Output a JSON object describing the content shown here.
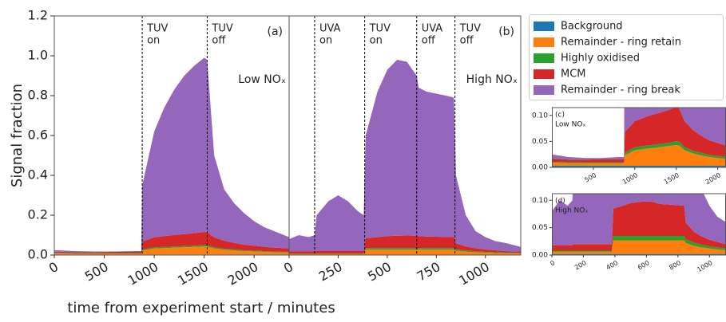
{
  "chart_data": {
    "type": "area",
    "stacked": true,
    "y_label": "Signal fraction",
    "x_label": "time from experiment start / minutes",
    "ylim": [
      0,
      1.2
    ],
    "yticks": [
      {
        "value": 0,
        "label": "0.0"
      },
      0.2,
      0.4,
      0.6,
      0.8,
      {
        "value": 1,
        "label": "1.0"
      },
      1.2
    ],
    "legend": "upper right",
    "series": [
      {
        "name": "Background",
        "color": "#1f77b4"
      },
      {
        "name": "Remainder - ring retain",
        "color": "#ff7f0e"
      },
      {
        "name": "Highly oxidised",
        "color": "#2ca02c"
      },
      {
        "name": "MCM",
        "color": "#d62728"
      },
      {
        "name": "Remainder - ring break",
        "color": "#9467bd"
      }
    ],
    "panels": [
      {
        "label": "(a)",
        "annotation": "Low NOₓ",
        "xlim": [
          0,
          2350
        ],
        "xticks": [
          0,
          500,
          1000,
          1500,
          2000
        ],
        "events": [
          {
            "x": 880,
            "label": [
              "TUV",
              "on"
            ]
          },
          {
            "x": 1530,
            "label": [
              "TUV",
              "off"
            ]
          }
        ],
        "x": [
          0,
          200,
          400,
          600,
          800,
          870,
          880,
          1000,
          1100,
          1200,
          1300,
          1400,
          1500,
          1530,
          1600,
          1700,
          1800,
          1900,
          2000,
          2100,
          2200,
          2350
        ],
        "stack": [
          [
            0.003,
            0.003,
            0.003,
            0.003,
            0.003,
            0.003,
            0.003,
            0.003,
            0.003,
            0.003,
            0.003,
            0.003,
            0.003,
            0.003,
            0.003,
            0.003,
            0.003,
            0.003,
            0.003,
            0.003,
            0.003,
            0.003
          ],
          [
            0.006,
            0.005,
            0.005,
            0.005,
            0.005,
            0.005,
            0.02,
            0.03,
            0.032,
            0.034,
            0.036,
            0.038,
            0.04,
            0.04,
            0.03,
            0.024,
            0.02,
            0.017,
            0.015,
            0.013,
            0.011,
            0.01
          ],
          [
            0.002,
            0.002,
            0.002,
            0.002,
            0.002,
            0.002,
            0.005,
            0.006,
            0.006,
            0.006,
            0.006,
            0.006,
            0.007,
            0.007,
            0.006,
            0.005,
            0.005,
            0.004,
            0.004,
            0.004,
            0.003,
            0.003
          ],
          [
            0.006,
            0.005,
            0.005,
            0.006,
            0.006,
            0.006,
            0.04,
            0.05,
            0.054,
            0.058,
            0.06,
            0.063,
            0.066,
            0.065,
            0.05,
            0.04,
            0.033,
            0.028,
            0.025,
            0.022,
            0.02,
            0.018
          ],
          [
            0.008,
            0.005,
            0.003,
            0.002,
            0.004,
            0.004,
            0.282,
            0.531,
            0.645,
            0.729,
            0.795,
            0.84,
            0.874,
            0.865,
            0.411,
            0.258,
            0.199,
            0.158,
            0.123,
            0.098,
            0.083,
            0.056
          ]
        ],
        "inset": {
          "label": "(c)",
          "annotation": "Low NOₓ",
          "xlim": [
            0,
            2100
          ],
          "xticks": [
            500,
            1000,
            1500,
            2000
          ],
          "ylim": [
            0,
            0.115
          ],
          "yticks": [
            {
              "value": 0,
              "label": "0.00"
            },
            {
              "value": 0.05,
              "label": "0.05"
            },
            {
              "value": 0.1,
              "label": "0.10"
            }
          ]
        }
      },
      {
        "label": "(b)",
        "annotation": "High NOₓ",
        "xlim": [
          0,
          1180
        ],
        "xticks": [
          0,
          250,
          500,
          750,
          1000
        ],
        "events": [
          {
            "x": 130,
            "label": [
              "UVA",
              "on"
            ]
          },
          {
            "x": 385,
            "label": [
              "TUV",
              "on"
            ]
          },
          {
            "x": 650,
            "label": [
              "UVA",
              "off"
            ]
          },
          {
            "x": 845,
            "label": [
              "TUV",
              "off"
            ]
          }
        ],
        "x": [
          0,
          50,
          100,
          130,
          140,
          200,
          250,
          300,
          350,
          380,
          390,
          450,
          500,
          550,
          600,
          650,
          660,
          700,
          750,
          800,
          840,
          850,
          900,
          950,
          1000,
          1050,
          1100,
          1180
        ],
        "stack": [
          [
            0.002,
            0.002,
            0.002,
            0.002,
            0.002,
            0.002,
            0.002,
            0.002,
            0.002,
            0.002,
            0.002,
            0.002,
            0.002,
            0.002,
            0.002,
            0.002,
            0.002,
            0.002,
            0.002,
            0.002,
            0.002,
            0.002,
            0.002,
            0.002,
            0.002,
            0.002,
            0.002,
            0.002
          ],
          [
            0.004,
            0.004,
            0.004,
            0.004,
            0.004,
            0.004,
            0.004,
            0.004,
            0.004,
            0.004,
            0.025,
            0.025,
            0.025,
            0.025,
            0.025,
            0.025,
            0.025,
            0.025,
            0.025,
            0.025,
            0.025,
            0.02,
            0.015,
            0.012,
            0.01,
            0.008,
            0.007,
            0.006
          ],
          [
            0.002,
            0.002,
            0.002,
            0.002,
            0.002,
            0.002,
            0.002,
            0.002,
            0.002,
            0.002,
            0.008,
            0.008,
            0.008,
            0.008,
            0.008,
            0.008,
            0.008,
            0.008,
            0.008,
            0.008,
            0.008,
            0.007,
            0.006,
            0.005,
            0.004,
            0.004,
            0.003,
            0.003
          ],
          [
            0.01,
            0.01,
            0.01,
            0.01,
            0.012,
            0.012,
            0.012,
            0.012,
            0.012,
            0.012,
            0.05,
            0.055,
            0.06,
            0.062,
            0.063,
            0.062,
            0.06,
            0.058,
            0.057,
            0.056,
            0.055,
            0.03,
            0.02,
            0.015,
            0.012,
            0.01,
            0.008,
            0.007
          ],
          [
            0.062,
            0.082,
            0.072,
            0.082,
            0.18,
            0.25,
            0.28,
            0.25,
            0.2,
            0.18,
            0.515,
            0.73,
            0.835,
            0.883,
            0.872,
            0.803,
            0.745,
            0.727,
            0.718,
            0.709,
            0.7,
            0.341,
            0.157,
            0.086,
            0.062,
            0.046,
            0.041,
            0.023
          ]
        ],
        "inset": {
          "label": "(d)",
          "annotation": "High NOₓ",
          "xlim": [
            0,
            1105
          ],
          "xticks": [
            0,
            200,
            400,
            600,
            800,
            1000
          ],
          "ylim": [
            0,
            0.112
          ],
          "yticks": [
            {
              "value": 0,
              "label": "0.00"
            },
            {
              "value": 0.05,
              "label": "0.05"
            },
            {
              "value": 0.1,
              "label": "0.10"
            }
          ]
        }
      }
    ]
  }
}
